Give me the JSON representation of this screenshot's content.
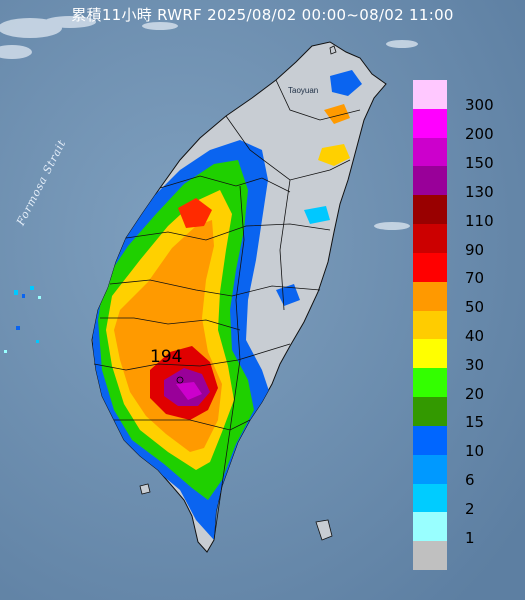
{
  "title": "累積11小時 RWRF 2025/08/02 00:00~08/02 11:00",
  "map": {
    "strait_label": "Formosa Strait",
    "city_label": "Taoyuan",
    "max_value_label": "194"
  },
  "legend": {
    "items": [
      {
        "label": "300",
        "color": "#ffc8ff"
      },
      {
        "label": "200",
        "color": "#ff00ff"
      },
      {
        "label": "150",
        "color": "#cc00cc"
      },
      {
        "label": "130",
        "color": "#990099"
      },
      {
        "label": "110",
        "color": "#990000"
      },
      {
        "label": "90",
        "color": "#cc0000"
      },
      {
        "label": "70",
        "color": "#ff0000"
      },
      {
        "label": "50",
        "color": "#ff9900"
      },
      {
        "label": "40",
        "color": "#ffcc00"
      },
      {
        "label": "30",
        "color": "#ffff00"
      },
      {
        "label": "20",
        "color": "#33ff00"
      },
      {
        "label": "15",
        "color": "#339900"
      },
      {
        "label": "10",
        "color": "#0066ff"
      },
      {
        "label": "6",
        "color": "#0099ff"
      },
      {
        "label": "2",
        "color": "#00ccff"
      },
      {
        "label": "1",
        "color": "#99ffff"
      },
      {
        "label": "",
        "color": "#c0c0c0"
      }
    ]
  },
  "colors": {
    "sea": "#6d8fb0",
    "land": "#c8cdd3",
    "boundary": "#111111"
  }
}
